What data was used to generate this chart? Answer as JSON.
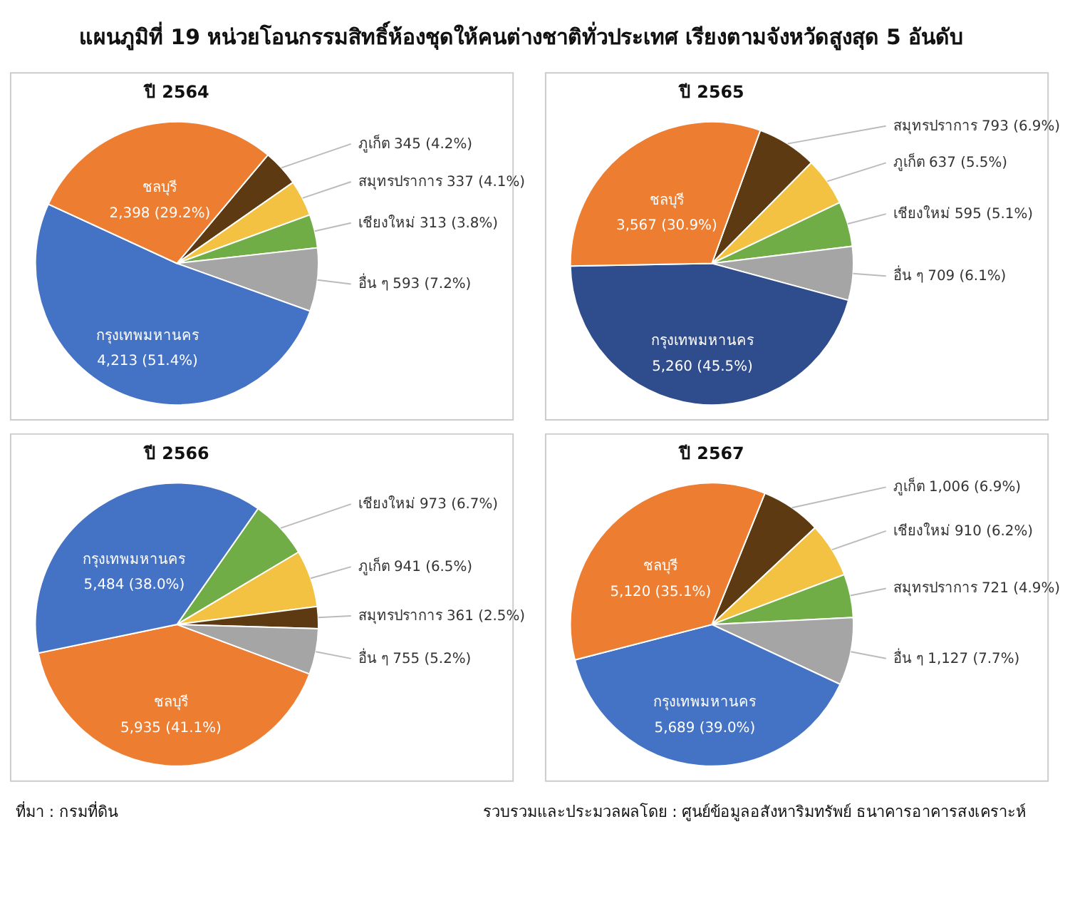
{
  "chart_data": [
    {
      "type": "other",
      "title": "แผนภูมิที่ 19 หน่วยโอนกรรมสิทธิ์ห้องชุดให้คนต่างชาติทั่วประเทศ เรียงตามจังหวัดสูงสุด 5 อันดับ"
    },
    {
      "type": "pie",
      "title": "ปี 2564",
      "categories": [
        "ภูเก็ต",
        "สมุทรปราการ",
        "เชียงใหม่",
        "อื่น ๆ",
        "กรุงเทพมหานคร",
        "ชลบุรี"
      ],
      "values": [
        345,
        337,
        313,
        593,
        4213,
        2398
      ],
      "value_labels": [
        "345 (4.2%)",
        "337 (4.1%)",
        "313 (3.8%)",
        "593 (7.2%)",
        "4,213 (51.4%)",
        "2,398 (29.2%)"
      ],
      "colors": [
        "#5e3a12",
        "#f4c242",
        "#70ad47",
        "#a5a5a5",
        "#4472c4",
        "#ed7d31"
      ]
    },
    {
      "type": "pie",
      "title": "ปี 2565",
      "categories": [
        "สมุทรปราการ",
        "ภูเก็ต",
        "เชียงใหม่",
        "อื่น ๆ",
        "กรุงเทพมหานคร",
        "ชลบุรี"
      ],
      "values": [
        793,
        637,
        595,
        709,
        5260,
        3567
      ],
      "value_labels": [
        "793 (6.9%)",
        "637 (5.5%)",
        "595 (5.1%)",
        "709 (6.1%)",
        "5,260 (45.5%)",
        "3,567 (30.9%)"
      ],
      "colors": [
        "#5e3a12",
        "#f4c242",
        "#70ad47",
        "#a5a5a5",
        "#2f4c8c",
        "#ed7d31"
      ]
    },
    {
      "type": "pie",
      "title": "ปี 2566",
      "categories": [
        "เชียงใหม่",
        "ภูเก็ต",
        "สมุทรปราการ",
        "อื่น ๆ",
        "ชลบุรี",
        "กรุงเทพมหานคร"
      ],
      "values": [
        973,
        941,
        361,
        755,
        5935,
        5484
      ],
      "value_labels": [
        "973 (6.7%)",
        "941 (6.5%)",
        "361 (2.5%)",
        "755 (5.2%)",
        "5,935 (41.1%)",
        "5,484 (38.0%)"
      ],
      "colors": [
        "#70ad47",
        "#f4c242",
        "#5e3a12",
        "#a5a5a5",
        "#ed7d31",
        "#4472c4"
      ]
    },
    {
      "type": "pie",
      "title": "ปี 2567",
      "categories": [
        "ภูเก็ต",
        "เชียงใหม่",
        "สมุทรปราการ",
        "อื่น ๆ",
        "กรุงเทพมหานคร",
        "ชลบุรี"
      ],
      "values": [
        1006,
        910,
        721,
        1127,
        5689,
        5120
      ],
      "value_labels": [
        "1,006 (6.9%)",
        "910 (6.2%)",
        "721 (4.9%)",
        "1,127 (7.7%)",
        "5,689 (39.0%)",
        "5,120 (35.1%)"
      ],
      "colors": [
        "#5e3a12",
        "#f4c242",
        "#70ad47",
        "#a5a5a5",
        "#4472c4",
        "#ed7d31"
      ]
    },
    {
      "type": "other",
      "annotations": [
        "ที่มา : กรมที่ดิน",
        "รวบรวมและประมวลผลโดย : ศูนย์ข้อมูลอสังหาริมทรัพย์ ธนาคารอาคารสงเคราะห์"
      ]
    }
  ]
}
